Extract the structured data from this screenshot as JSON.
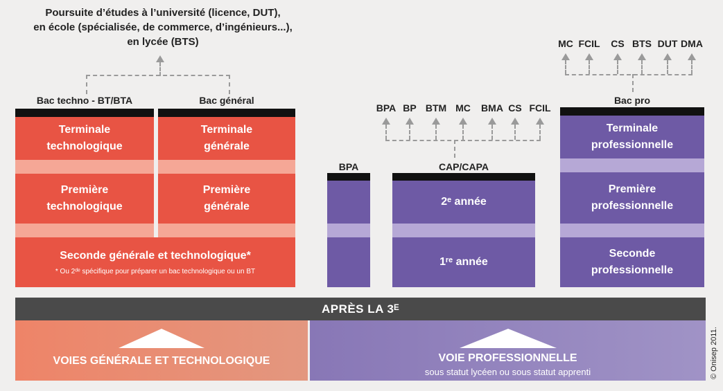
{
  "top_left_text": [
    "Poursuite d’études à l’université (licence, DUT),",
    "en école (spécialisée, de commerce, d’ingénieurs...),",
    "en lycée (BTS)"
  ],
  "columns": {
    "bac_techno": "Bac techno - BT/BTA",
    "bac_general": "Bac général",
    "bpa": "BPA",
    "cap": "CAP/CAPA",
    "bac_pro": "Bac pro"
  },
  "techno": {
    "terminale": [
      "Terminale",
      "technologique"
    ],
    "premiere": [
      "Première",
      "technologique"
    ]
  },
  "general": {
    "terminale": [
      "Terminale",
      "générale"
    ],
    "premiere": [
      "Première",
      "générale"
    ]
  },
  "seconde_gt": {
    "title": "Seconde générale et technologique*",
    "note": "* Ou 2ᵈᵉ spécifique pour préparer un bac technologique ou un BT"
  },
  "cap_years": {
    "second": "2ᵉ année",
    "first": "1ʳᵉ année"
  },
  "pro": {
    "terminale": [
      "Terminale",
      "professionnelle"
    ],
    "premiere": [
      "Première",
      "professionnelle"
    ],
    "seconde": [
      "Seconde",
      "professionnelle"
    ]
  },
  "cap_outcomes": [
    "BPA",
    "BP",
    "BTM",
    "MC",
    "BMA",
    "CS",
    "FCIL"
  ],
  "pro_outcomes": [
    "MC",
    "FCIL",
    "CS",
    "BTS",
    "DUT",
    "DMA"
  ],
  "banner": "APRÈS LA 3ᴱ",
  "voie_gt": "VOIES GÉNÉRALE ET TECHNOLOGIQUE",
  "voie_pro": {
    "title": "VOIE PROFESSIONNELLE",
    "subtitle": "sous statut lycéen ou sous statut apprenti"
  },
  "copyright": "© Onisep 2011.",
  "colors": {
    "red": "#e85444",
    "purple": "#6e5aa5",
    "banner": "#4a4a4a"
  }
}
